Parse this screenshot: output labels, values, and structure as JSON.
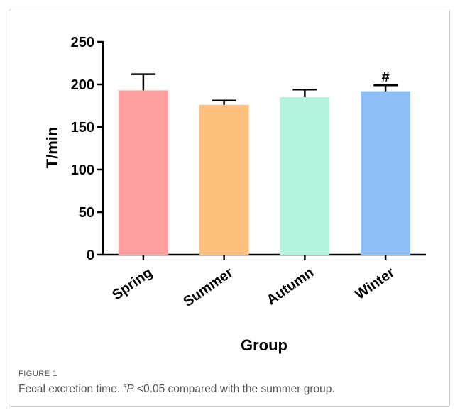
{
  "chart_data": {
    "type": "bar",
    "title": "",
    "xlabel": "Group",
    "ylabel": "T/min",
    "categories": [
      "Spring",
      "Summer",
      "Autumn",
      "Winter"
    ],
    "values": [
      193,
      176,
      185,
      192
    ],
    "errors": [
      19,
      5,
      9,
      7
    ],
    "colors": [
      "#ff9e9e",
      "#ffc07e",
      "#b3f5dc",
      "#8fbff7"
    ],
    "ylim": [
      0,
      250
    ],
    "yticks": [
      0,
      50,
      100,
      150,
      200,
      250
    ],
    "grid": false,
    "legend": "none",
    "annotations": [
      {
        "category": "Winter",
        "text": "#"
      }
    ]
  },
  "caption": {
    "label": "FIGURE 1",
    "text_main": "Fecal excretion time. ",
    "text_sup": "#",
    "text_p": "P",
    "text_rest": " <0.05 compared with the summer group."
  }
}
